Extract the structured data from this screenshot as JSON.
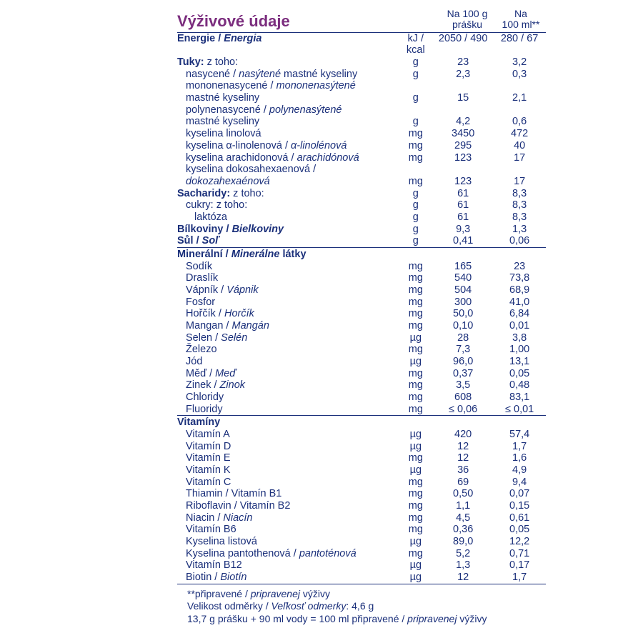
{
  "colors": {
    "text": "#1a2f7a",
    "title": "#7b2d7e",
    "rule": "#1a2f7a",
    "bg": "#ffffff"
  },
  "title": "Výživové údaje",
  "col_headers": {
    "c1_l1": "Na 100 g",
    "c1_l2": "prášku",
    "c2_l1": "Na",
    "c2_l2": "100 ml**"
  },
  "rows": [
    {
      "label": "Energie / <i>Energia</i>",
      "bold": true,
      "unit": "kJ / kcal",
      "v1": "2050 / 490",
      "v2": "280 / 67"
    },
    {
      "label": "Tuky: <span style='font-weight:normal'>z toho:</span>",
      "bold": true,
      "unit": "g",
      "v1": "23",
      "v2": "3,2"
    },
    {
      "label": "nasycené / <i>nasýtené</i> mastné kyseliny",
      "indent": 1,
      "unit": "g",
      "v1": "2,3",
      "v2": "0,3"
    },
    {
      "label": "mononenasycené / <i>mononenasýtené</i>",
      "indent": 1
    },
    {
      "label": "mastné kyseliny",
      "indent": 1,
      "unit": "g",
      "v1": "15",
      "v2": "2,1"
    },
    {
      "label": "polynenasycené / <i>polynenasýtené</i>",
      "indent": 1
    },
    {
      "label": "mastné kyseliny",
      "indent": 1,
      "unit": "g",
      "v1": "4,2",
      "v2": "0,6"
    },
    {
      "label": "kyselina linolová",
      "indent": 1,
      "unit": "mg",
      "v1": "3450",
      "v2": "472"
    },
    {
      "label": "kyselina α-linolenová / <i>α-linolénová</i>",
      "indent": 1,
      "unit": "mg",
      "v1": "295",
      "v2": "40"
    },
    {
      "label": "kyselina arachidonová / <i>arachidónová</i>",
      "indent": 1,
      "unit": "mg",
      "v1": "123",
      "v2": "17"
    },
    {
      "label": "kyselina dokosahexaenová /",
      "indent": 1
    },
    {
      "label": "<i>dokozahexaénová</i>",
      "indent": 1,
      "unit": "mg",
      "v1": "123",
      "v2": "17"
    },
    {
      "label": "Sacharidy: <span style='font-weight:normal'>z toho:</span>",
      "bold": true,
      "unit": "g",
      "v1": "61",
      "v2": "8,3"
    },
    {
      "label": "cukry: z toho:",
      "indent": 1,
      "unit": "g",
      "v1": "61",
      "v2": "8,3"
    },
    {
      "label": "laktóza",
      "indent": 2,
      "unit": "g",
      "v1": "61",
      "v2": "8,3"
    },
    {
      "label": "Bílkoviny / <i>Bielkoviny</i>",
      "bold": true,
      "unit": "g",
      "v1": "9,3",
      "v2": "1,3"
    },
    {
      "label": "Sůl / <i>Soľ</i>",
      "bold": true,
      "unit": "g",
      "v1": "0,41",
      "v2": "0,06"
    },
    {
      "label": "Minerální / <i>Minerálne</i> látky",
      "bold": true,
      "rule": true
    },
    {
      "label": "Sodík",
      "indent": 1,
      "unit": "mg",
      "v1": "165",
      "v2": "23"
    },
    {
      "label": "Draslík",
      "indent": 1,
      "unit": "mg",
      "v1": "540",
      "v2": "73,8"
    },
    {
      "label": "Vápník / <i>Vápnik</i>",
      "indent": 1,
      "unit": "mg",
      "v1": "504",
      "v2": "68,9"
    },
    {
      "label": "Fosfor",
      "indent": 1,
      "unit": "mg",
      "v1": "300",
      "v2": "41,0"
    },
    {
      "label": "Hořčík / <i>Horčík</i>",
      "indent": 1,
      "unit": "mg",
      "v1": "50,0",
      "v2": "6,84"
    },
    {
      "label": "Mangan / <i>Mangán</i>",
      "indent": 1,
      "unit": "mg",
      "v1": "0,10",
      "v2": "0,01"
    },
    {
      "label": "Selen / <i>Selén</i>",
      "indent": 1,
      "unit": "µg",
      "v1": "28",
      "v2": "3,8"
    },
    {
      "label": "Železo",
      "indent": 1,
      "unit": "mg",
      "v1": "7,3",
      "v2": "1,00"
    },
    {
      "label": "Jód",
      "indent": 1,
      "unit": "µg",
      "v1": "96,0",
      "v2": "13,1"
    },
    {
      "label": "Měď / <i>Meď</i>",
      "indent": 1,
      "unit": "mg",
      "v1": "0,37",
      "v2": "0,05"
    },
    {
      "label": "Zinek / <i>Zinok</i>",
      "indent": 1,
      "unit": "mg",
      "v1": "3,5",
      "v2": "0,48"
    },
    {
      "label": "Chloridy",
      "indent": 1,
      "unit": "mg",
      "v1": "608",
      "v2": "83,1"
    },
    {
      "label": "Fluoridy",
      "indent": 1,
      "unit": "mg",
      "v1": "≤ 0,06",
      "v2": "≤ 0,01"
    },
    {
      "label": "Vitamíny",
      "bold": true,
      "rule": true
    },
    {
      "label": "Vitamín A",
      "indent": 1,
      "unit": "µg",
      "v1": "420",
      "v2": "57,4"
    },
    {
      "label": "Vitamín D",
      "indent": 1,
      "unit": "µg",
      "v1": "12",
      "v2": "1,7"
    },
    {
      "label": "Vitamín E",
      "indent": 1,
      "unit": "mg",
      "v1": "12",
      "v2": "1,6"
    },
    {
      "label": "Vitamín K",
      "indent": 1,
      "unit": "µg",
      "v1": "36",
      "v2": "4,9"
    },
    {
      "label": "Vitamín C",
      "indent": 1,
      "unit": "mg",
      "v1": "69",
      "v2": "9,4"
    },
    {
      "label": "Thiamin / Vitamín B1",
      "indent": 1,
      "unit": "mg",
      "v1": "0,50",
      "v2": "0,07"
    },
    {
      "label": "Riboflavin / Vitamín B2",
      "indent": 1,
      "unit": "mg",
      "v1": "1,1",
      "v2": "0,15"
    },
    {
      "label": "Niacin / <i>Niacín</i>",
      "indent": 1,
      "unit": "mg",
      "v1": "4,5",
      "v2": "0,61"
    },
    {
      "label": "Vitamín B6",
      "indent": 1,
      "unit": "mg",
      "v1": "0,36",
      "v2": "0,05"
    },
    {
      "label": "Kyselina listová",
      "indent": 1,
      "unit": "µg",
      "v1": "89,0",
      "v2": "12,2"
    },
    {
      "label": "Kyselina pantothenová / <i>pantoténová</i>",
      "indent": 1,
      "unit": "mg",
      "v1": "5,2",
      "v2": "0,71"
    },
    {
      "label": "Vitamín B12",
      "indent": 1,
      "unit": "µg",
      "v1": "1,3",
      "v2": "0,17"
    },
    {
      "label": "Biotin / <i>Biotín</i>",
      "indent": 1,
      "unit": "µg",
      "v1": "12",
      "v2": "1,7"
    }
  ],
  "footnotes": [
    "**připravené / <i>pripravenej</i> výživy",
    "Velikost odměrky / <i>Veľkosť odmerky</i>: 4,6 g",
    "13,7 g prášku + 90 ml vody = 100 ml připravené / <i>pripravenej</i> výživy"
  ]
}
